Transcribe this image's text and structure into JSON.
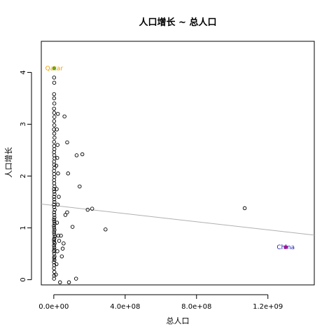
{
  "chart_data": {
    "type": "scatter",
    "title": "人口增长 ~ 总人口",
    "xlabel": "总人口",
    "ylabel": "人口增长",
    "xlim": [
      -70000000,
      1460000000
    ],
    "ylim": [
      -0.1,
      4.6
    ],
    "x_ticks": [
      0,
      400000000,
      800000000,
      1200000000
    ],
    "x_tick_labels": [
      "0.0e+00",
      "4.0e+08",
      "8.0e+08",
      "1.2e+09"
    ],
    "y_ticks": [
      0,
      1,
      2,
      3,
      4
    ],
    "y_tick_labels": [
      "0",
      "1",
      "2",
      "3",
      "4"
    ],
    "grid": false,
    "legend": "none",
    "points": [
      {
        "x": 1500000,
        "y": 0.02
      },
      {
        "x": 2000000,
        "y": 0.08
      },
      {
        "x": 3000000,
        "y": 0.15
      },
      {
        "x": 1200000,
        "y": 0.22
      },
      {
        "x": 2500000,
        "y": 0.28
      },
      {
        "x": 800000,
        "y": 0.34
      },
      {
        "x": 3500000,
        "y": 0.38
      },
      {
        "x": 1800000,
        "y": 0.42
      },
      {
        "x": 4000000,
        "y": 0.45
      },
      {
        "x": 2200000,
        "y": 0.5
      },
      {
        "x": 1000000,
        "y": 0.55
      },
      {
        "x": 3000000,
        "y": 0.58
      },
      {
        "x": 2800000,
        "y": 0.62
      },
      {
        "x": 1500000,
        "y": 0.66
      },
      {
        "x": 4500000,
        "y": 0.7
      },
      {
        "x": 2000000,
        "y": 0.73
      },
      {
        "x": 1200000,
        "y": 0.77
      },
      {
        "x": 3200000,
        "y": 0.8
      },
      {
        "x": 5000000,
        "y": 0.84
      },
      {
        "x": 2600000,
        "y": 0.88
      },
      {
        "x": 1700000,
        "y": 0.92
      },
      {
        "x": 3800000,
        "y": 0.96
      },
      {
        "x": 2100000,
        "y": 1.0
      },
      {
        "x": 900000,
        "y": 1.04
      },
      {
        "x": 4200000,
        "y": 1.08
      },
      {
        "x": 2400000,
        "y": 1.12
      },
      {
        "x": 1300000,
        "y": 1.16
      },
      {
        "x": 3600000,
        "y": 1.2
      },
      {
        "x": 2900000,
        "y": 1.25
      },
      {
        "x": 1900000,
        "y": 1.3
      },
      {
        "x": 4800000,
        "y": 1.35
      },
      {
        "x": 2300000,
        "y": 1.4
      },
      {
        "x": 1100000,
        "y": 1.45
      },
      {
        "x": 3400000,
        "y": 1.5
      },
      {
        "x": 2700000,
        "y": 1.55
      },
      {
        "x": 1600000,
        "y": 1.6
      },
      {
        "x": 4100000,
        "y": 1.65
      },
      {
        "x": 2500000,
        "y": 1.7
      },
      {
        "x": 1400000,
        "y": 1.75
      },
      {
        "x": 3900000,
        "y": 1.8
      },
      {
        "x": 2200000,
        "y": 1.86
      },
      {
        "x": 1800000,
        "y": 1.92
      },
      {
        "x": 3100000,
        "y": 1.98
      },
      {
        "x": 2000000,
        "y": 2.04
      },
      {
        "x": 1200000,
        "y": 2.1
      },
      {
        "x": 3700000,
        "y": 2.16
      },
      {
        "x": 2400000,
        "y": 2.22
      },
      {
        "x": 1600000,
        "y": 2.28
      },
      {
        "x": 4300000,
        "y": 2.34
      },
      {
        "x": 2800000,
        "y": 2.4
      },
      {
        "x": 1500000,
        "y": 2.46
      },
      {
        "x": 3300000,
        "y": 2.52
      },
      {
        "x": 2100000,
        "y": 2.58
      },
      {
        "x": 1700000,
        "y": 2.66
      },
      {
        "x": 3900000,
        "y": 2.74
      },
      {
        "x": 2600000,
        "y": 2.82
      },
      {
        "x": 1300000,
        "y": 2.9
      },
      {
        "x": 2900000,
        "y": 2.98
      },
      {
        "x": 1900000,
        "y": 3.06
      },
      {
        "x": 3500000,
        "y": 3.14
      },
      {
        "x": 2300000,
        "y": 3.22
      },
      {
        "x": 1400000,
        "y": 3.3
      },
      {
        "x": 3000000,
        "y": 3.4
      },
      {
        "x": 2000000,
        "y": 3.5
      },
      {
        "x": 1600000,
        "y": 3.58
      },
      {
        "x": 2500000,
        "y": 3.8
      },
      {
        "x": 1800000,
        "y": 3.9
      },
      {
        "x": 2000000,
        "y": 4.08,
        "highlight": "Qatar"
      },
      {
        "x": 15000000,
        "y": 0.3
      },
      {
        "x": 20000000,
        "y": 0.55
      },
      {
        "x": 25000000,
        "y": 0.85
      },
      {
        "x": 18000000,
        "y": 1.1
      },
      {
        "x": 22000000,
        "y": 1.45
      },
      {
        "x": 16000000,
        "y": 1.75
      },
      {
        "x": 24000000,
        "y": 2.05
      },
      {
        "x": 19000000,
        "y": 2.35
      },
      {
        "x": 21000000,
        "y": 2.6
      },
      {
        "x": 17000000,
        "y": 2.9
      },
      {
        "x": 23000000,
        "y": 3.2
      },
      {
        "x": 12000000,
        "y": 0.1
      },
      {
        "x": 28000000,
        "y": 1.6
      },
      {
        "x": 14000000,
        "y": 2.2
      },
      {
        "x": 30000000,
        "y": 0.75
      },
      {
        "x": 45000000,
        "y": 0.45
      },
      {
        "x": 50000000,
        "y": 0.6
      },
      {
        "x": 55000000,
        "y": 0.7
      },
      {
        "x": 40000000,
        "y": 0.85
      },
      {
        "x": 35000000,
        "y": -0.05
      },
      {
        "x": 60000000,
        "y": 3.15
      },
      {
        "x": 65000000,
        "y": 1.25
      },
      {
        "x": 75000000,
        "y": 1.3
      },
      {
        "x": 80000000,
        "y": 2.05
      },
      {
        "x": 75000000,
        "y": 2.65
      },
      {
        "x": 85000000,
        "y": -0.05
      },
      {
        "x": 105000000,
        "y": 1.02
      },
      {
        "x": 125000000,
        "y": 0.02
      },
      {
        "x": 128000000,
        "y": 2.4
      },
      {
        "x": 145000000,
        "y": 1.8
      },
      {
        "x": 160000000,
        "y": 2.42
      },
      {
        "x": 190000000,
        "y": 1.35
      },
      {
        "x": 215000000,
        "y": 1.37
      },
      {
        "x": 290000000,
        "y": 0.97
      },
      {
        "x": 1070000000,
        "y": 1.38
      },
      {
        "x": 1300000000,
        "y": 0.63,
        "highlight": "China"
      }
    ],
    "regression_line": {
      "x": [
        -70000000,
        1460000000
      ],
      "y": [
        1.46,
        0.86
      ]
    },
    "annotations": [
      {
        "text": "Qatar",
        "x": 2000000,
        "y": 4.08,
        "color": "#f0a000",
        "point_color": "#22aa22"
      },
      {
        "text": "China",
        "x": 1300000000,
        "y": 0.63,
        "color": "#2020b0",
        "point_color": "#dd1188"
      }
    ],
    "colors": {
      "points": "#000000",
      "line": "#b0b0b0"
    }
  }
}
